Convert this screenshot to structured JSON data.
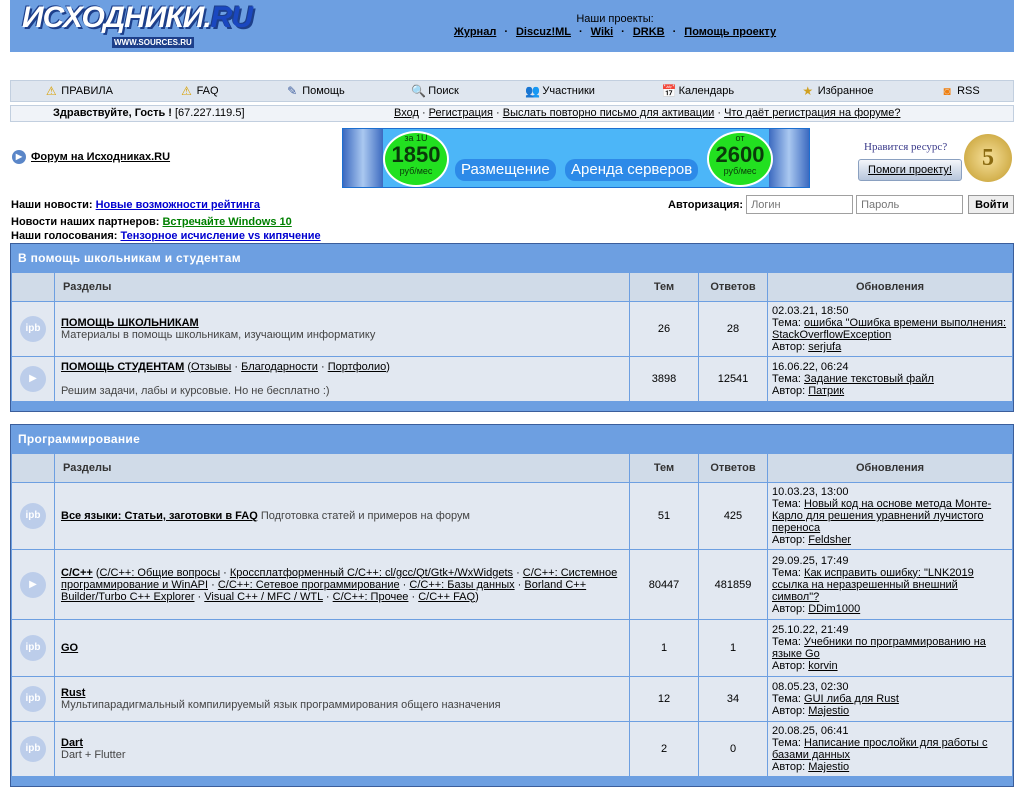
{
  "header": {
    "logo": "ИСХОДНИКИ.RU",
    "logo_sub": "WWW.SOURCES.RU",
    "projects_label": "Наши проекты:",
    "projects": [
      "Журнал",
      "Discuz!ML",
      "Wiki",
      "DRKB",
      "Помощь проекту"
    ]
  },
  "nav": [
    {
      "icon": "warning-icon",
      "label": "ПРАВИЛА"
    },
    {
      "icon": "warning-icon",
      "label": "FAQ"
    },
    {
      "icon": "help-icon",
      "label": "Помощь"
    },
    {
      "icon": "search-icon",
      "label": "Поиск"
    },
    {
      "icon": "users-icon",
      "label": "Участники"
    },
    {
      "icon": "calendar-icon",
      "label": "Календарь"
    },
    {
      "icon": "star-icon",
      "label": "Избранное"
    },
    {
      "icon": "rss-icon",
      "label": "RSS"
    }
  ],
  "greeting": {
    "text": "Здравствуйте, Гость !",
    "ip": "[67.227.119.5]",
    "links": [
      "Вход",
      "Регистрация",
      "Выслать повторно письмо для активации",
      "Что даёт регистрация на форуме?"
    ]
  },
  "forum_link": "Форум на Исходниках.RU",
  "banner": {
    "left_small": "за 1U",
    "left_big": "1850",
    "left_unit": "руб/мес",
    "right_small": "от",
    "right_big": "2600",
    "right_unit": "руб/мес",
    "label1": "Размещение",
    "label2": "Аренда серверов"
  },
  "donate": {
    "question": "Нравится ресурс?",
    "button": "Помоги проекту!",
    "coin": "5"
  },
  "news": [
    {
      "label": "Наши новости:",
      "link": "Новые возможности рейтинга"
    },
    {
      "label": "Новости наших партнеров:",
      "link": "Встречайте Windows 10"
    },
    {
      "label": "Наши голосования:",
      "link": "Тензорное исчисление vs кипячение"
    }
  ],
  "auth": {
    "label": "Авторизация:",
    "login_placeholder": "Логин",
    "password_placeholder": "Пароль",
    "button": "Войти"
  },
  "columns": {
    "sections": "Разделы",
    "topics": "Тем",
    "replies": "Ответов",
    "updates": "Обновления"
  },
  "categories": [
    {
      "title": "В помощь школьникам и студентам",
      "forums": [
        {
          "icon": "ipb",
          "name": "ПОМОЩЬ ШКОЛЬНИКАМ",
          "desc": "Материалы в помощь школьникам, изучающим информатику",
          "subs": [],
          "topics": "26",
          "replies": "28",
          "date": "02.03.21, 18:50",
          "topic": "ошибка \"Ошибка времени выполнения: StackOverflowException",
          "author": "serjufa"
        },
        {
          "icon": "play",
          "name": "ПОМОЩЬ СТУДЕНТАМ",
          "desc": "Решим задачи, лабы и курсовые. Но не бесплатно :)",
          "subs": [
            "Отзывы",
            "Благодарности",
            "Портфолио"
          ],
          "topics": "3898",
          "replies": "12541",
          "date": "16.06.22, 06:24",
          "topic": "Задание текстовый файл",
          "author": "Патрик"
        }
      ]
    },
    {
      "title": "Программирование",
      "forums": [
        {
          "icon": "ipb",
          "name": "Все языки: Статьи, заготовки в FAQ",
          "desc": "Подготовка статей и примеров на форум",
          "inline": true,
          "subs": [],
          "topics": "51",
          "replies": "425",
          "date": "10.03.23, 13:00",
          "topic": "Новый код на основе метода Монте-Карло для решения уравнений лучистого переноса",
          "author": "Feldsher"
        },
        {
          "icon": "play",
          "name": "C/C++",
          "desc": "",
          "subs": [
            "C/C++: Общие вопросы",
            "Кроссплатформенный C/C++: cl/gcc/Qt/Gtk+/WxWidgets",
            "C/C++: Системное программирование и WinAPI",
            "C/C++: Сетевое программирование",
            "C/C++: Базы данных",
            "Borland C++ Builder/Turbo C++ Explorer",
            "Visual C++ / MFC / WTL",
            "C/C++: Прочее",
            "C/C++ FAQ"
          ],
          "topics": "80447",
          "replies": "481859",
          "date": "29.09.25, 17:49",
          "topic": "Как исправить ошибку: \"LNK2019 ссылка на неразрешенный внешний символ\"?",
          "author": "DDim1000"
        },
        {
          "icon": "ipb",
          "name": "GO",
          "desc": "",
          "subs": [],
          "topics": "1",
          "replies": "1",
          "date": "25.10.22, 21:49",
          "topic": "Учебники по программированию на языке Go",
          "author": "korvin"
        },
        {
          "icon": "ipb",
          "name": "Rust",
          "desc": "Мультипарадигмальный компилируемый язык программирования общего назначения",
          "subs": [],
          "topics": "12",
          "replies": "34",
          "date": "08.05.23, 02:30",
          "topic": "GUI либа для Rust",
          "author": "Majestio"
        },
        {
          "icon": "ipb",
          "name": "Dart",
          "desc": "Dart + Flutter",
          "subs": [],
          "topics": "2",
          "replies": "0",
          "date": "20.08.25, 06:41",
          "topic": "Написание прослойки для работы с базами данных",
          "author": "Majestio"
        }
      ]
    }
  ],
  "labels": {
    "topic": "Тема:",
    "author": "Автор:"
  }
}
